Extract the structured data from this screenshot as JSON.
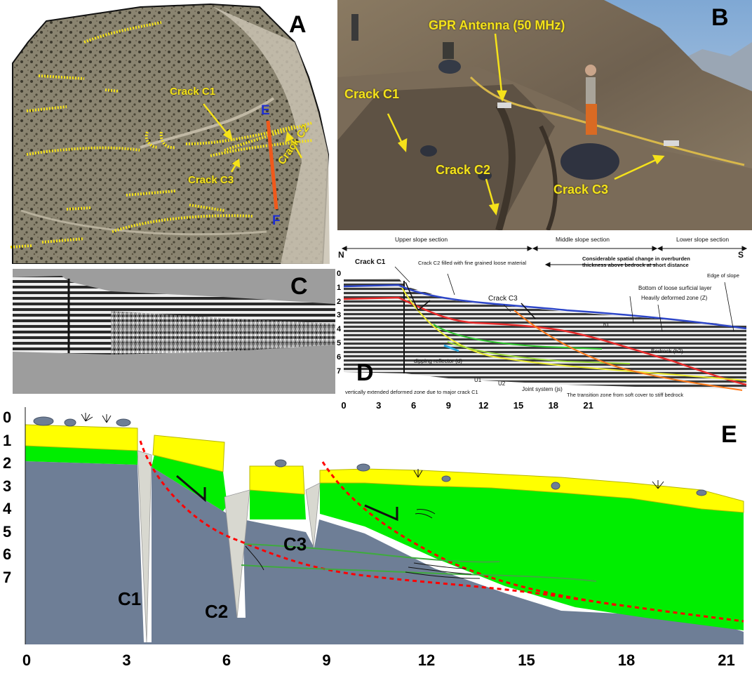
{
  "panels": {
    "a": {
      "letter": "A",
      "labels": {
        "crack_c1": "Crack C1",
        "crack_c2": "Crack C2",
        "crack_c3": "Crack C3",
        "point_e": "E",
        "point_f": "F"
      }
    },
    "b": {
      "letter": "B",
      "labels": {
        "gpr": "GPR  Antenna (50 MHz)",
        "crack_c1": "Crack C1",
        "crack_c2": "Crack C2",
        "crack_c3": "Crack C3"
      }
    },
    "c": {
      "letter": "C"
    },
    "d": {
      "letter": "D",
      "sections": {
        "upper": "Upper slope section",
        "middle": "Middle slope section",
        "lower": "Lower slope section"
      },
      "directions": {
        "north": "N",
        "south": "S"
      },
      "annotations": {
        "crack_c1": "Crack C1",
        "crack_c2_fill": "Crack C2 filled with fine grained loose material",
        "spatial_change_1": "Considerable spatial change in overburden",
        "spatial_change_2": "thickness above bedrock at short distance",
        "edge": "Edge of slope",
        "crack_c3": "Crack C3",
        "bottom_layer": "Bottom of loose surficial layer",
        "deformed_zone": "Heavily deformed zone (Z)",
        "h1": "h1",
        "bedrock": "Bedrock (h2)",
        "dipping": "dipping reflector (d)",
        "u1": "U1",
        "u2": "U2",
        "joint": "Joint system (js)",
        "vertical_zone": "vertically extended deformed zone due to major crack C1",
        "transition": "The transition zone from soft cover to stiff bedrock"
      },
      "y_ticks": [
        "0",
        "1",
        "2",
        "3",
        "4",
        "5",
        "6",
        "7"
      ],
      "x_ticks": [
        "0",
        "3",
        "6",
        "9",
        "12",
        "15",
        "18",
        "21"
      ]
    },
    "e": {
      "letter": "E",
      "labels": {
        "c1": "C1",
        "c2": "C2",
        "c3": "C3"
      },
      "y_ticks": [
        "0",
        "1",
        "2",
        "3",
        "4",
        "5",
        "6",
        "7"
      ],
      "x_ticks": [
        "0",
        "3",
        "6",
        "9",
        "12",
        "15",
        "18",
        "21"
      ]
    }
  },
  "colors": {
    "crack_marker": "#f5e21a",
    "profile_line": "#f0591b",
    "profile_endpoints": "#1f2fd0",
    "surficial_layer": "#ffff00",
    "weathered_layer": "#00ee00",
    "bedrock": "#6e7e96",
    "crack_fill": "#d8d8d0",
    "interpreted_surface": "#ff0000"
  }
}
